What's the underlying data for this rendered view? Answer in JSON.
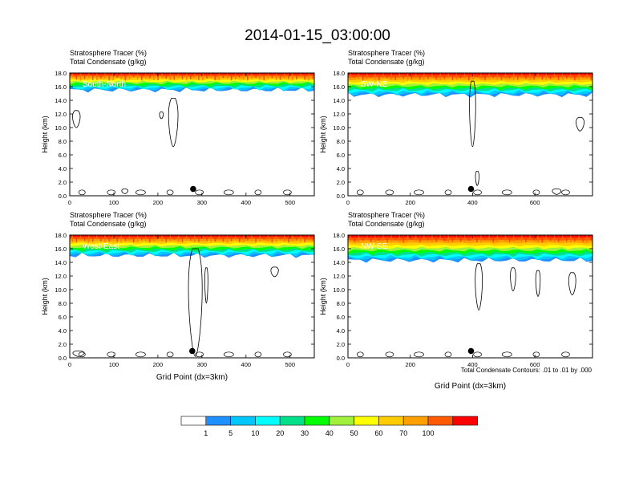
{
  "title": "2014-01-15_03:00:00",
  "colors": {
    "bins": [
      "#ffffff",
      "#1e90ff",
      "#00c8ff",
      "#00ffff",
      "#00e08a",
      "#00ff00",
      "#a0f03c",
      "#ffff00",
      "#ffcc00",
      "#ffa000",
      "#ff5a00",
      "#ff0000"
    ],
    "contour": "#000000",
    "label": "#ffffff"
  },
  "colorbar": {
    "labels": [
      "1",
      "5",
      "10",
      "20",
      "30",
      "40",
      "50",
      "60",
      "70",
      "100"
    ]
  },
  "footnote": "Total Condensate Contours: .01 to .01 by .000",
  "chart_data": [
    {
      "type": "heatmap",
      "panel_label": "South-North",
      "titles": [
        "Stratosphere Tracer   (%)",
        "Total Condensate   (g/kg)"
      ],
      "ylabel": "Height (km)",
      "xlabel": "",
      "xlim": [
        0,
        555
      ],
      "ylim": [
        0,
        18
      ],
      "xticks": [
        0,
        100,
        200,
        300,
        400,
        500
      ],
      "yticks": [
        "0.0",
        "2.0",
        "4.0",
        "6.0",
        "8.0",
        "10.0",
        "12.0",
        "14.0",
        "16.0",
        "18.0"
      ],
      "tracer_base_km": 15.5,
      "marker_x": 280,
      "marker_y_km": 1.0,
      "cloud_contours": [
        {
          "x_center": 235,
          "x_halfwidth": 15,
          "y_bottom": 7.2,
          "y_top": 14.3
        },
        {
          "x_center": 15,
          "x_halfwidth": 12,
          "y_bottom": 10.0,
          "y_top": 12.5
        },
        {
          "x_center": 208,
          "x_halfwidth": 6,
          "y_bottom": 11.3,
          "y_top": 12.3
        },
        {
          "x_center": 125,
          "x_halfwidth": 10,
          "y_bottom": 0.3,
          "y_top": 1.0
        }
      ]
    },
    {
      "type": "heatmap",
      "panel_label": "SW-NE",
      "titles": [
        "Stratosphere Tracer   (%)",
        "Total Condensate   (g/kg)"
      ],
      "ylabel": "Height (km)",
      "xlabel": "",
      "xlim": [
        0,
        785
      ],
      "ylim": [
        0,
        18
      ],
      "xticks": [
        0,
        200,
        400,
        600
      ],
      "yticks": [
        "0.0",
        "2.0",
        "4.0",
        "6.0",
        "8.0",
        "10.0",
        "12.0",
        "14.0",
        "16.0",
        "18.0"
      ],
      "tracer_base_km": 14.8,
      "marker_x": 395,
      "marker_y_km": 1.0,
      "cloud_contours": [
        {
          "x_center": 400,
          "x_halfwidth": 14,
          "y_bottom": 7.2,
          "y_top": 16.8
        },
        {
          "x_center": 745,
          "x_halfwidth": 18,
          "y_bottom": 9.5,
          "y_top": 11.5
        },
        {
          "x_center": 415,
          "x_halfwidth": 8,
          "y_bottom": 1.5,
          "y_top": 3.6
        },
        {
          "x_center": 670,
          "x_halfwidth": 20,
          "y_bottom": 0.2,
          "y_top": 1.0
        }
      ]
    },
    {
      "type": "heatmap",
      "panel_label": "West-East",
      "titles": [
        "Stratosphere Tracer   (%)",
        "Total Condensate   (g/kg)"
      ],
      "ylabel": "Height (km)",
      "xlabel": "Grid Point (dx=3km)",
      "xlim": [
        0,
        555
      ],
      "ylim": [
        0,
        18
      ],
      "xticks": [
        0,
        100,
        200,
        300,
        400,
        500
      ],
      "yticks": [
        "0.0",
        "2.0",
        "4.0",
        "6.0",
        "8.0",
        "10.0",
        "12.0",
        "14.0",
        "16.0",
        "18.0"
      ],
      "tracer_base_km": 15.0,
      "marker_x": 278,
      "marker_y_km": 1.0,
      "cloud_contours": [
        {
          "x_center": 285,
          "x_halfwidth": 22,
          "y_bottom": 0.2,
          "y_top": 16.0
        },
        {
          "x_center": 310,
          "x_halfwidth": 5,
          "y_bottom": 8.0,
          "y_top": 13.2
        },
        {
          "x_center": 465,
          "x_halfwidth": 12,
          "y_bottom": 11.9,
          "y_top": 13.3
        },
        {
          "x_center": 20,
          "x_halfwidth": 18,
          "y_bottom": 0.2,
          "y_top": 1.0
        }
      ]
    },
    {
      "type": "heatmap",
      "panel_label": "NW-SE",
      "titles": [
        "Stratosphere Tracer   (%)",
        "Total Condensate   (g/kg)"
      ],
      "ylabel": "Height (km)",
      "xlabel": "Grid Point (dx=3km)",
      "xlim": [
        0,
        785
      ],
      "ylim": [
        0,
        18
      ],
      "xticks": [
        0,
        200,
        400,
        600
      ],
      "yticks": [
        "0.0",
        "2.0",
        "4.0",
        "6.0",
        "8.0",
        "10.0",
        "12.0",
        "14.0",
        "16.0",
        "18.0"
      ],
      "tracer_base_km": 14.3,
      "marker_x": 395,
      "marker_y_km": 1.0,
      "cloud_contours": [
        {
          "x_center": 420,
          "x_halfwidth": 16,
          "y_bottom": 7.0,
          "y_top": 13.8
        },
        {
          "x_center": 530,
          "x_halfwidth": 12,
          "y_bottom": 9.8,
          "y_top": 13.2
        },
        {
          "x_center": 610,
          "x_halfwidth": 10,
          "y_bottom": 9.0,
          "y_top": 12.8
        },
        {
          "x_center": 720,
          "x_halfwidth": 16,
          "y_bottom": 9.2,
          "y_top": 12.5
        }
      ]
    }
  ]
}
